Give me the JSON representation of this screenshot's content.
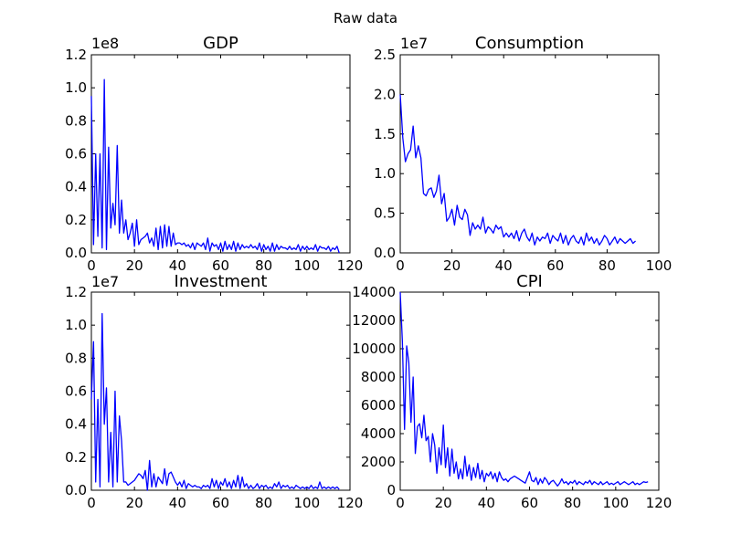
{
  "figure": {
    "suptitle": "Raw data"
  },
  "chart_data": [
    {
      "type": "line",
      "title": "GDP",
      "offset_text": "1e8",
      "xlim": [
        0,
        120
      ],
      "ylim": [
        0,
        1.2
      ],
      "xticks": [
        0,
        20,
        40,
        60,
        80,
        100,
        120
      ],
      "yticks": [
        0.0,
        0.2,
        0.4,
        0.6,
        0.8,
        1.0,
        1.2
      ],
      "xtick_labels": [
        "0",
        "20",
        "40",
        "60",
        "80",
        "100",
        "120"
      ],
      "ytick_labels": [
        "0.0",
        "0.2",
        "0.4",
        "0.6",
        "0.8",
        "1.0",
        "1.2"
      ],
      "color": "#0000ff",
      "y": [
        0.95,
        0.05,
        0.6,
        0.1,
        0.6,
        0.03,
        1.05,
        0.02,
        0.64,
        0.15,
        0.3,
        0.17,
        0.65,
        0.12,
        0.32,
        0.12,
        0.2,
        0.08,
        0.12,
        0.18,
        0.04,
        0.2,
        0.05,
        0.08,
        0.09,
        0.1,
        0.12,
        0.06,
        0.09,
        0.04,
        0.15,
        0.02,
        0.16,
        0.03,
        0.17,
        0.04,
        0.16,
        0.04,
        0.12,
        0.05,
        0.06,
        0.06,
        0.05,
        0.06,
        0.04,
        0.05,
        0.03,
        0.06,
        0.02,
        0.06,
        0.05,
        0.04,
        0.06,
        0.02,
        0.09,
        0.01,
        0.06,
        0.04,
        0.05,
        0.02,
        0.06,
        0.01,
        0.07,
        0.02,
        0.05,
        0.02,
        0.07,
        0.01,
        0.06,
        0.02,
        0.05,
        0.03,
        0.04,
        0.03,
        0.05,
        0.03,
        0.04,
        0.02,
        0.06,
        0.01,
        0.05,
        0.02,
        0.04,
        0.01,
        0.06,
        0.01,
        0.05,
        0.02,
        0.04,
        0.03,
        0.03,
        0.02,
        0.04,
        0.02,
        0.03,
        0.02,
        0.05,
        0.01,
        0.04,
        0.02,
        0.04,
        0.02,
        0.03,
        0.02,
        0.05,
        0.01,
        0.04,
        0.03,
        0.03,
        0.02,
        0.04,
        0.01,
        0.03,
        0.02,
        0.04,
        0.0
      ]
    },
    {
      "type": "line",
      "title": "Consumption",
      "offset_text": "1e7",
      "xlim": [
        0,
        100
      ],
      "ylim": [
        0,
        2.5
      ],
      "xticks": [
        0,
        20,
        40,
        60,
        80,
        100
      ],
      "yticks": [
        0.0,
        0.5,
        1.0,
        1.5,
        2.0,
        2.5
      ],
      "xtick_labels": [
        "0",
        "20",
        "40",
        "60",
        "80",
        "100"
      ],
      "ytick_labels": [
        "0.0",
        "0.5",
        "1.0",
        "1.5",
        "2.0",
        "2.5"
      ],
      "color": "#0000ff",
      "y": [
        2.0,
        1.45,
        1.15,
        1.25,
        1.3,
        1.6,
        1.2,
        1.35,
        1.2,
        0.75,
        0.72,
        0.8,
        0.82,
        0.7,
        0.78,
        0.98,
        0.62,
        0.75,
        0.4,
        0.45,
        0.55,
        0.35,
        0.6,
        0.45,
        0.42,
        0.55,
        0.48,
        0.22,
        0.38,
        0.3,
        0.35,
        0.3,
        0.45,
        0.25,
        0.33,
        0.3,
        0.25,
        0.35,
        0.3,
        0.33,
        0.2,
        0.25,
        0.2,
        0.25,
        0.18,
        0.28,
        0.15,
        0.25,
        0.3,
        0.2,
        0.15,
        0.25,
        0.1,
        0.2,
        0.15,
        0.2,
        0.18,
        0.25,
        0.12,
        0.22,
        0.18,
        0.15,
        0.25,
        0.12,
        0.22,
        0.1,
        0.18,
        0.22,
        0.15,
        0.12,
        0.2,
        0.1,
        0.25,
        0.15,
        0.2,
        0.12,
        0.18,
        0.1,
        0.15,
        0.22,
        0.18,
        0.1,
        0.15,
        0.2,
        0.12,
        0.18,
        0.15,
        0.12,
        0.15,
        0.18,
        0.12,
        0.15
      ]
    },
    {
      "type": "line",
      "title": "Investment",
      "offset_text": "1e7",
      "xlim": [
        0,
        120
      ],
      "ylim": [
        0,
        1.2
      ],
      "xticks": [
        0,
        20,
        40,
        60,
        80,
        100,
        120
      ],
      "yticks": [
        0.0,
        0.2,
        0.4,
        0.6,
        0.8,
        1.0,
        1.2
      ],
      "xtick_labels": [
        "0",
        "20",
        "40",
        "60",
        "80",
        "100",
        "120"
      ],
      "ytick_labels": [
        "0.0",
        "0.2",
        "0.4",
        "0.6",
        "0.8",
        "1.0",
        "1.2"
      ],
      "color": "#0000ff",
      "y": [
        0.55,
        0.9,
        0.05,
        0.55,
        0.02,
        1.07,
        0.4,
        0.62,
        0.05,
        0.35,
        0.02,
        0.6,
        0.05,
        0.45,
        0.3,
        0.05,
        0.05,
        0.03,
        0.04,
        0.05,
        0.06,
        0.08,
        0.1,
        0.09,
        0.07,
        0.12,
        0.0,
        0.18,
        0.02,
        0.1,
        0.02,
        0.08,
        0.06,
        0.04,
        0.13,
        0.03,
        0.1,
        0.11,
        0.08,
        0.05,
        0.03,
        0.05,
        0.02,
        0.06,
        0.01,
        0.04,
        0.03,
        0.02,
        0.03,
        0.02,
        0.02,
        0.01,
        0.03,
        0.02,
        0.03,
        0.01,
        0.07,
        0.02,
        0.06,
        0.01,
        0.05,
        0.03,
        0.07,
        0.02,
        0.05,
        0.01,
        0.06,
        0.02,
        0.09,
        0.01,
        0.08,
        0.02,
        0.04,
        0.01,
        0.03,
        0.01,
        0.02,
        0.04,
        0.01,
        0.03,
        0.02,
        0.03,
        0.01,
        0.02,
        0.01,
        0.04,
        0.02,
        0.05,
        0.01,
        0.03,
        0.02,
        0.03,
        0.01,
        0.02,
        0.01,
        0.03,
        0.02,
        0.01,
        0.02,
        0.01,
        0.02,
        0.01,
        0.03,
        0.01,
        0.02,
        0.01,
        0.05,
        0.01,
        0.02,
        0.01,
        0.02,
        0.01,
        0.02,
        0.01,
        0.02,
        0.005
      ]
    },
    {
      "type": "line",
      "title": "CPI",
      "offset_text": "",
      "xlim": [
        0,
        120
      ],
      "ylim": [
        0,
        14000
      ],
      "xticks": [
        0,
        20,
        40,
        60,
        80,
        100,
        120
      ],
      "yticks": [
        0,
        2000,
        4000,
        6000,
        8000,
        10000,
        12000,
        14000
      ],
      "xtick_labels": [
        "0",
        "20",
        "40",
        "60",
        "80",
        "100",
        "120"
      ],
      "ytick_labels": [
        "0",
        "2000",
        "4000",
        "6000",
        "8000",
        "10000",
        "12000",
        "14000"
      ],
      "color": "#0000ff",
      "y": [
        14000,
        10500,
        4300,
        10200,
        9000,
        4800,
        8000,
        2600,
        4500,
        4700,
        3700,
        5300,
        3500,
        3800,
        2000,
        4000,
        3200,
        1200,
        3000,
        1800,
        4600,
        1600,
        3000,
        1000,
        2900,
        1200,
        2000,
        800,
        1500,
        800,
        2400,
        1000,
        1800,
        700,
        1600,
        900,
        1900,
        800,
        1400,
        600,
        1200,
        1000,
        1300,
        800,
        1200,
        600,
        1300,
        900,
        700,
        800,
        600,
        800,
        900,
        1000,
        900,
        800,
        700,
        600,
        500,
        900,
        1300,
        700,
        600,
        900,
        400,
        800,
        500,
        900,
        700,
        400,
        600,
        700,
        500,
        300,
        500,
        800,
        500,
        600,
        400,
        600,
        500,
        700,
        400,
        600,
        500,
        400,
        600,
        500,
        700,
        400,
        600,
        500,
        400,
        600,
        400,
        500,
        600,
        400,
        500,
        400,
        500,
        600,
        400,
        500,
        600,
        500,
        400,
        500,
        600,
        400,
        500,
        400,
        500,
        600,
        550,
        600
      ]
    }
  ]
}
